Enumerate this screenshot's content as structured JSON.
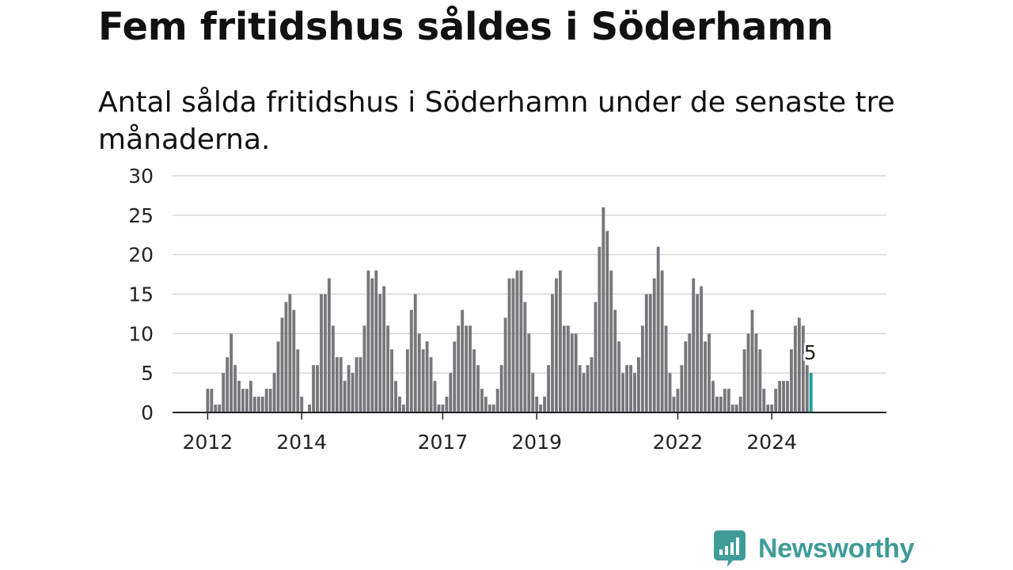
{
  "title": "Fem fritidshus såldes i Söderhamn",
  "subtitle": "Antal sålda fritidshus i Söderhamn under de senaste tre månaderna.",
  "brand": {
    "name": "Newsworthy",
    "color": "#3f9c98",
    "icon": "newsworthy-logo-icon"
  },
  "colors": {
    "bar": "#77767b",
    "highlight": "#17a09c",
    "grid": "#d6d6d6",
    "axis": "#222222"
  },
  "chart_data": {
    "type": "bar",
    "title": "Fem fritidshus såldes i Söderhamn",
    "subtitle": "Antal sålda fritidshus i Söderhamn under de senaste tre månaderna.",
    "xlabel": "",
    "ylabel": "",
    "ylim": [
      0,
      30
    ],
    "yticks": [
      0,
      5,
      10,
      15,
      20,
      25,
      30
    ],
    "grid": true,
    "start": "2012-01",
    "xticks": [
      "2012",
      "2014",
      "2017",
      "2019",
      "2022",
      "2024"
    ],
    "values": [
      3,
      3,
      1,
      1,
      5,
      7,
      10,
      6,
      4,
      3,
      3,
      4,
      2,
      2,
      2,
      3,
      3,
      5,
      9,
      12,
      14,
      15,
      13,
      8,
      2,
      0,
      1,
      6,
      6,
      15,
      15,
      17,
      11,
      7,
      7,
      4,
      6,
      5,
      7,
      7,
      11,
      18,
      17,
      18,
      15,
      16,
      11,
      8,
      4,
      2,
      1,
      8,
      13,
      15,
      10,
      8,
      9,
      7,
      4,
      1,
      1,
      2,
      5,
      9,
      11,
      13,
      11,
      11,
      8,
      6,
      3,
      2,
      1,
      1,
      3,
      6,
      12,
      17,
      17,
      18,
      18,
      14,
      10,
      5,
      2,
      1,
      2,
      6,
      15,
      17,
      18,
      11,
      11,
      10,
      10,
      6,
      5,
      6,
      7,
      14,
      21,
      26,
      23,
      18,
      13,
      9,
      5,
      6,
      6,
      5,
      7,
      11,
      15,
      15,
      17,
      21,
      18,
      11,
      5,
      2,
      3,
      6,
      9,
      10,
      17,
      15,
      16,
      9,
      10,
      4,
      2,
      2,
      3,
      3,
      1,
      1,
      2,
      8,
      10,
      13,
      10,
      8,
      3,
      1,
      1,
      3,
      4,
      4,
      4,
      8,
      11,
      12,
      11,
      6,
      5
    ],
    "highlight": {
      "value": 5,
      "label": "5"
    }
  }
}
